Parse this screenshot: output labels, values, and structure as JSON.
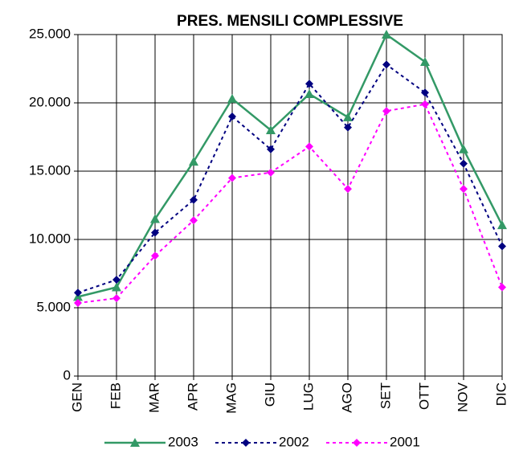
{
  "chart_data": {
    "type": "line",
    "title": "PRES. MENSILI COMPLESSIVE",
    "categories": [
      "GEN",
      "FEB",
      "MAR",
      "APR",
      "MAG",
      "GIU",
      "LUG",
      "AGO",
      "SET",
      "OTT",
      "NOV",
      "DIC"
    ],
    "series": [
      {
        "name": "2003",
        "color": "#339966",
        "marker": "triangle",
        "dash": false,
        "values": [
          5800,
          6500,
          11500,
          15700,
          20300,
          18000,
          20650,
          18950,
          25000,
          23000,
          16600,
          11050
        ]
      },
      {
        "name": "2002",
        "color": "#000080",
        "marker": "diamond",
        "dash": true,
        "values": [
          6100,
          7050,
          10500,
          12900,
          19000,
          16600,
          21400,
          18200,
          22800,
          20750,
          15550,
          9500
        ]
      },
      {
        "name": "2001",
        "color": "#ff00ff",
        "marker": "diamond",
        "dash": true,
        "values": [
          5350,
          5700,
          8800,
          11400,
          14500,
          14900,
          16800,
          13700,
          19400,
          19900,
          13700,
          6500
        ]
      }
    ],
    "ylim": [
      0,
      25000
    ],
    "yticks": [
      0,
      {
        "value": 5000,
        "label": "5.000"
      },
      {
        "value": 10000,
        "label": "10.000"
      },
      {
        "value": 15000,
        "label": "15.000"
      },
      {
        "value": 20000,
        "label": "20.000"
      },
      {
        "value": 25000,
        "label": "25.000"
      }
    ],
    "grid": true,
    "legend": "bottom"
  }
}
